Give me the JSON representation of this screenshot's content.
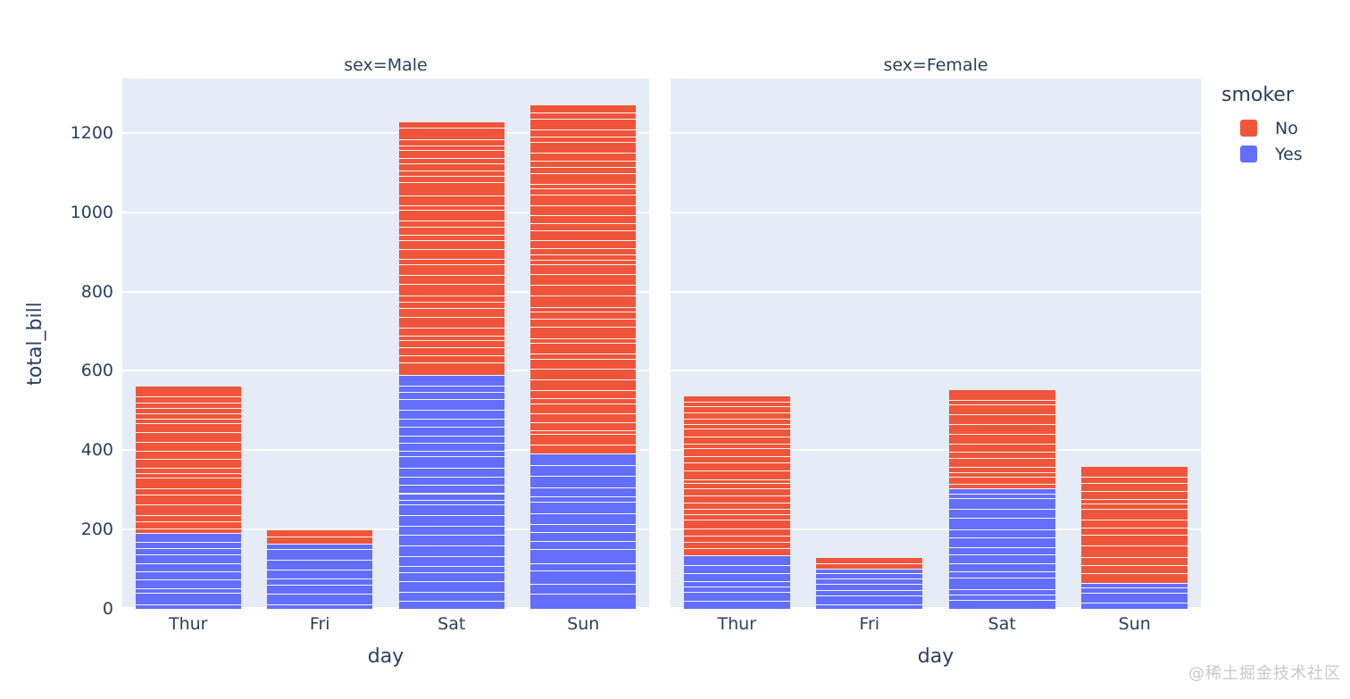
{
  "chart_data": {
    "type": "bar",
    "stacked": true,
    "orientation": "vertical",
    "xlabel": "day",
    "ylabel": "total_bill",
    "yticks": [
      0,
      200,
      400,
      600,
      800,
      1000,
      1200
    ],
    "ylim": [
      0,
      1337
    ],
    "grid": true,
    "plot_bgcolor": "#E5ECF6",
    "gridcolor": "#ffffff",
    "text_color": "#2a3f5f",
    "categories": [
      "Thur",
      "Fri",
      "Sat",
      "Sun"
    ],
    "facets": [
      {
        "title": "sex=Male",
        "series": [
          {
            "name": "Yes",
            "color": "#636EFA",
            "values": [
              191.71,
              163.62,
              589.62,
              392.12
            ],
            "n_records": [
              10,
              8,
              27,
              15
            ]
          },
          {
            "name": "No",
            "color": "#EF553B",
            "values": [
              369.73,
              34.95,
              637.73,
              877.34
            ],
            "n_records": [
              20,
              2,
              32,
              43
            ]
          }
        ],
        "totals": [
          561.44,
          198.57,
          1227.35,
          1269.46
        ]
      },
      {
        "title": "sex=Female",
        "series": [
          {
            "name": "Yes",
            "color": "#636EFA",
            "values": [
              134.53,
              101.61,
              304.0,
              66.16
            ],
            "n_records": [
              7,
              7,
              15,
              4
            ]
          },
          {
            "name": "No",
            "color": "#EF553B",
            "values": [
              400.36,
              25.7,
              247.05,
              291.54
            ],
            "n_records": [
              25,
              2,
              13,
              14
            ]
          }
        ],
        "totals": [
          534.89,
          127.31,
          551.05,
          357.7
        ]
      }
    ],
    "legend": {
      "title": "smoker",
      "position": "top-right",
      "items": [
        {
          "label": "No",
          "color": "#EF553B"
        },
        {
          "label": "Yes",
          "color": "#636EFA"
        }
      ]
    }
  },
  "watermark": "@稀土掘金技术社区"
}
